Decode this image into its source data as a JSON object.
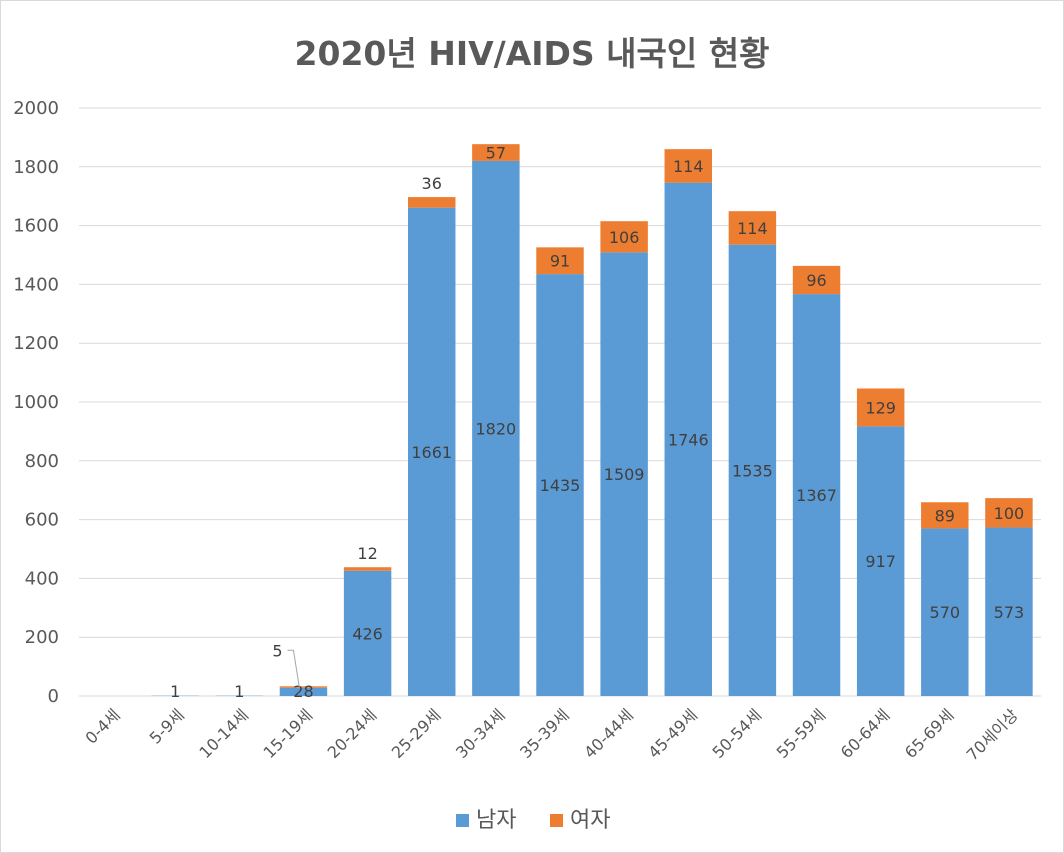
{
  "chart_data": {
    "type": "bar",
    "stacked": true,
    "title": "2020년 HIV/AIDS 내국인 현황",
    "categories": [
      "0-4세",
      "5-9세",
      "10-14세",
      "15-19세",
      "20-24세",
      "25-29세",
      "30-34세",
      "35-39세",
      "40-44세",
      "45-49세",
      "50-54세",
      "55-59세",
      "60-64세",
      "65-69세",
      "70세이상"
    ],
    "series": [
      {
        "name": "남자",
        "color": "#5b9bd5",
        "values": [
          0,
          1,
          1,
          28,
          426,
          1661,
          1820,
          1435,
          1509,
          1746,
          1535,
          1367,
          917,
          570,
          573
        ],
        "labels": [
          "",
          "1",
          "1",
          "28",
          "426",
          "1661",
          "1820",
          "1435",
          "1509",
          "1746",
          "1535",
          "1367",
          "917",
          "570",
          "573"
        ]
      },
      {
        "name": "여자",
        "color": "#ed7d31",
        "values": [
          0,
          0,
          0,
          5,
          12,
          36,
          57,
          91,
          106,
          114,
          114,
          96,
          129,
          89,
          100
        ],
        "labels": [
          "",
          "",
          "",
          "5",
          "12",
          "36",
          "57",
          "91",
          "106",
          "114",
          "114",
          "96",
          "129",
          "89",
          "100"
        ]
      }
    ],
    "yticks": [
      "0",
      "200",
      "400",
      "600",
      "800",
      "1000",
      "1200",
      "1400",
      "1600",
      "1800",
      "2000"
    ],
    "ylim": [
      0,
      2000
    ],
    "xlabel": "",
    "ylabel": "",
    "grid": true,
    "legend": "bottom",
    "gridline_color": "#d9d9d9"
  }
}
